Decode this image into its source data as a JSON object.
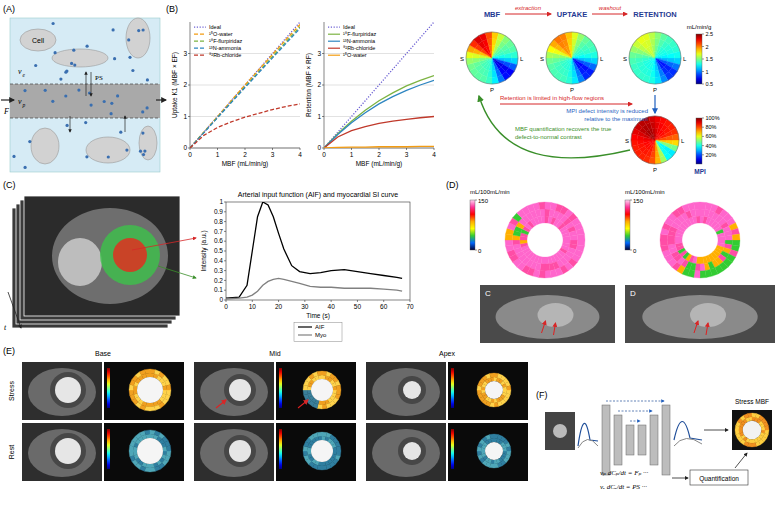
{
  "panels": {
    "a": "(A)",
    "b": "(B)",
    "c": "(C)",
    "d": "(D)",
    "e": "(E)",
    "f": "(F)"
  },
  "panel_a": {
    "cell": "Cell",
    "ve": "v",
    "ve_sub": "e",
    "vp": "v",
    "vp_sub": "p",
    "ps": "PS",
    "flow": "F"
  },
  "panel_b_maps": {
    "mbf": "MBF",
    "extraction": "extraction",
    "uptake": "UPTAKE",
    "washout": "washout",
    "retention": "RETENTION",
    "mpi": "MPI",
    "orient": [
      "S",
      "L",
      "P"
    ],
    "note_red": "Retention is limited in high-flow regions",
    "note_blue": "MPI defect intensity is reduced relative to the maximum",
    "note_green": "MBF quantification recovers the true defect-to-normal contrast",
    "colorbar_mbf": {
      "unit": "mL/min/g",
      "lim": [
        0.5,
        2.5
      ],
      "ticks": [
        0.5,
        1,
        1.5,
        2,
        2.5
      ]
    },
    "colorbar_mpi": {
      "lim": [
        0,
        100
      ],
      "ticks": [
        {
          "value": 20,
          "label": "20%"
        },
        {
          "value": 40,
          "label": "40%"
        },
        {
          "value": 60,
          "label": "60%"
        },
        {
          "value": 80,
          "label": "80%"
        },
        {
          "value": 100,
          "label": "100%"
        }
      ]
    }
  },
  "chart_data": [
    {
      "type": "line",
      "xlabel": "MBF (mL/min/g)",
      "ylabel": "Uptake K1 (MBF × EF)",
      "x": [
        0,
        0.5,
        1,
        1.5,
        2,
        2.5,
        3,
        3.5,
        4
      ],
      "xlim": [
        0,
        4
      ],
      "xticks": [
        0,
        1,
        2,
        3,
        4
      ],
      "ylim": [
        0,
        4
      ],
      "yticks": [
        0,
        1,
        2,
        3
      ],
      "grid": true,
      "legend": "top-left",
      "series": [
        {
          "name": "Ideal",
          "color": "#6b5fd3",
          "line_style": "dotted",
          "values": [
            0,
            0.5,
            1,
            1.5,
            2,
            2.5,
            3,
            3.5,
            4
          ]
        },
        {
          "name": "¹⁵O-water",
          "color": "#f39c12",
          "line_style": "dashed",
          "values": [
            0,
            0.5,
            1,
            1.5,
            2,
            2.48,
            2.97,
            3.45,
            3.92
          ]
        },
        {
          "name": "¹⁸F-flurpiridaz",
          "color": "#7cb342",
          "line_style": "dashed",
          "values": [
            0,
            0.49,
            0.97,
            1.46,
            1.94,
            2.42,
            2.9,
            3.38,
            3.85
          ]
        },
        {
          "name": "¹³N-ammonia",
          "color": "#2e86c1",
          "line_style": "dashed",
          "values": [
            0,
            0.48,
            0.96,
            1.44,
            1.92,
            2.39,
            2.86,
            3.33,
            3.8
          ]
        },
        {
          "name": "⁸²Rb-chloride",
          "color": "#c0392b",
          "line_style": "dashed",
          "values": [
            0,
            0.4,
            0.65,
            0.83,
            0.98,
            1.1,
            1.22,
            1.32,
            1.4
          ]
        }
      ]
    },
    {
      "type": "line",
      "xlabel": "MBF (mL/min/g)",
      "ylabel": "Retention (MBF × RF)",
      "x": [
        0,
        0.5,
        1,
        1.5,
        2,
        2.5,
        3,
        3.5,
        4
      ],
      "xlim": [
        0,
        4
      ],
      "xticks": [
        0,
        1,
        2,
        3,
        4
      ],
      "ylim": [
        0,
        4
      ],
      "yticks": [
        0,
        1,
        2,
        3
      ],
      "grid": true,
      "legend": "top-left",
      "series": [
        {
          "name": "Ideal",
          "color": "#6b5fd3",
          "line_style": "dotted",
          "values": [
            0,
            0.5,
            1,
            1.5,
            2,
            2.5,
            3,
            3.5,
            4
          ]
        },
        {
          "name": "¹⁸F-flurpiridaz",
          "color": "#7cb342",
          "line_style": "solid",
          "values": [
            0,
            0.45,
            0.85,
            1.2,
            1.5,
            1.75,
            1.97,
            2.15,
            2.3
          ]
        },
        {
          "name": "¹³N-ammonia",
          "color": "#2e86c1",
          "line_style": "solid",
          "values": [
            0,
            0.43,
            0.8,
            1.12,
            1.4,
            1.63,
            1.83,
            2.0,
            2.15
          ]
        },
        {
          "name": "⁸²Rb-chloride",
          "color": "#c0392b",
          "line_style": "solid",
          "values": [
            0,
            0.35,
            0.55,
            0.68,
            0.78,
            0.85,
            0.91,
            0.96,
            1.0
          ]
        },
        {
          "name": "¹⁵O-water",
          "color": "#f39c12",
          "line_style": "solid",
          "values": [
            0,
            0.02,
            0.03,
            0.03,
            0.04,
            0.04,
            0.04,
            0.05,
            0.05
          ]
        }
      ]
    },
    {
      "type": "line",
      "title": "Arterial input function (AIF) and myocardial SI curve",
      "xlabel": "Time (s)",
      "ylabel": "Intensity (a.u.)",
      "x": [
        0,
        5,
        8,
        10,
        12,
        14,
        16,
        18,
        20,
        22,
        25,
        28,
        32,
        36,
        40,
        45,
        50,
        55,
        60,
        65,
        67
      ],
      "xlim": [
        0,
        70
      ],
      "xticks": [
        0,
        10,
        20,
        30,
        40,
        50,
        60,
        70
      ],
      "ylim": [
        0,
        1
      ],
      "yticks": [
        0,
        0.1,
        0.2,
        0.3,
        0.4,
        0.5,
        0.6,
        0.7,
        0.8,
        0.9,
        1
      ],
      "grid": false,
      "legend": "bottom",
      "series": [
        {
          "name": "AIF",
          "color": "#000000",
          "line_style": "solid",
          "values": [
            0.02,
            0.03,
            0.15,
            0.5,
            0.85,
            1.0,
            0.97,
            0.85,
            0.68,
            0.52,
            0.35,
            0.29,
            0.27,
            0.28,
            0.3,
            0.31,
            0.29,
            0.27,
            0.25,
            0.23,
            0.22
          ]
        },
        {
          "name": "Myo",
          "color": "#808080",
          "line_style": "solid",
          "values": [
            0.01,
            0.02,
            0.03,
            0.05,
            0.09,
            0.15,
            0.19,
            0.21,
            0.22,
            0.21,
            0.19,
            0.17,
            0.14,
            0.13,
            0.13,
            0.12,
            0.12,
            0.12,
            0.11,
            0.1,
            0.09
          ]
        }
      ]
    }
  ],
  "panel_c": {
    "time_axis": "t"
  },
  "panel_d": {
    "colorbar_unit": "mL/100mL/min",
    "colorbar_lim": [
      0,
      150
    ],
    "colorbar_ticks": [
      0,
      150
    ],
    "image_labels": [
      "C",
      "D"
    ]
  },
  "panel_e": {
    "columns": [
      "Base",
      "Mid",
      "Apex"
    ],
    "rows": [
      "Stress",
      "Rest"
    ]
  },
  "panel_f": {
    "eq1": "vₚ dCₚ/dt = Fₚ ···",
    "eq2": "vₑ dCₑ/dt = PS ···",
    "quant": "Quantification",
    "map_title": "Stress MBF"
  }
}
